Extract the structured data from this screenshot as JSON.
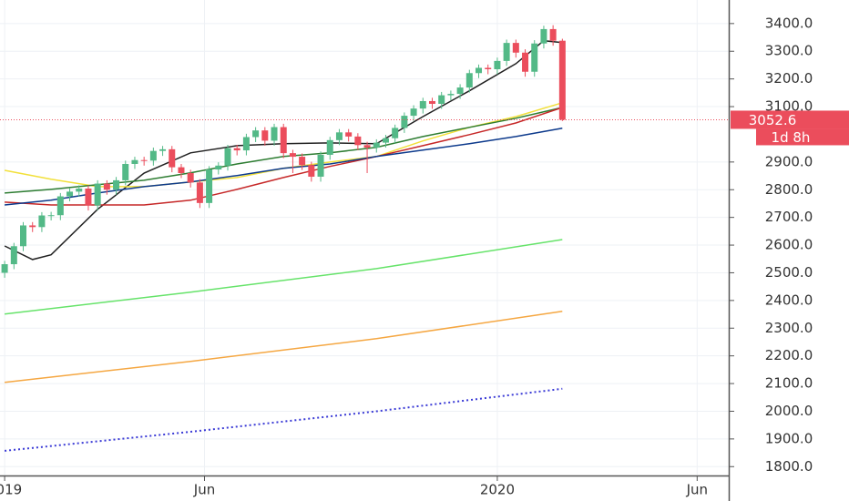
{
  "chart_data": {
    "type": "candlestick",
    "x": [
      0,
      1,
      2,
      3,
      4,
      5,
      6,
      7,
      8,
      9,
      10,
      11,
      12,
      13,
      14,
      15,
      16,
      17,
      18,
      19,
      20,
      21,
      22,
      23,
      24,
      25,
      26,
      27,
      28,
      29,
      30,
      31,
      32,
      33,
      34,
      35,
      36,
      37,
      38,
      39,
      40,
      41,
      42,
      43,
      44,
      45,
      46,
      47,
      48,
      49,
      50,
      51,
      52,
      53,
      54,
      55,
      56,
      57,
      58,
      59,
      60
    ],
    "open": [
      2500,
      2531,
      2596,
      2671,
      2665,
      2707,
      2708,
      2776,
      2793,
      2804,
      2743,
      2822,
      2800,
      2834,
      2893,
      2907,
      2905,
      2940,
      2946,
      2881,
      2860,
      2826,
      2752,
      2873,
      2887,
      2950,
      2942,
      2990,
      3014,
      2977,
      3026,
      2932,
      2919,
      2889,
      2847,
      2926,
      2979,
      3007,
      2992,
      2961,
      2952,
      2970,
      2986,
      3023,
      3067,
      3093,
      3120,
      3110,
      3141,
      3146,
      3169,
      3221,
      3240,
      3235,
      3265,
      3330,
      3295,
      3226,
      3328,
      3380,
      3338
    ],
    "high": [
      2543,
      2608,
      2683,
      2683,
      2719,
      2720,
      2788,
      2805,
      2816,
      2816,
      2834,
      2834,
      2846,
      2905,
      2919,
      2919,
      2952,
      2958,
      2958,
      2893,
      2872,
      2838,
      2885,
      2899,
      2962,
      2962,
      3002,
      3026,
      3026,
      3038,
      3038,
      2944,
      2931,
      2901,
      2938,
      2991,
      3019,
      3019,
      3004,
      2973,
      2982,
      2998,
      3035,
      3079,
      3105,
      3132,
      3132,
      3153,
      3158,
      3181,
      3233,
      3252,
      3252,
      3277,
      3342,
      3342,
      3307,
      3340,
      3392,
      3394,
      3345
    ],
    "low": [
      2482,
      2513,
      2578,
      2647,
      2647,
      2689,
      2690,
      2758,
      2775,
      2725,
      2725,
      2782,
      2782,
      2816,
      2875,
      2887,
      2887,
      2922,
      2863,
      2842,
      2808,
      2734,
      2734,
      2855,
      2869,
      2924,
      2924,
      2972,
      2959,
      2959,
      2914,
      2860,
      2871,
      2829,
      2829,
      2908,
      2961,
      2974,
      2943,
      2860,
      2934,
      2952,
      2968,
      3005,
      3049,
      3075,
      3092,
      3092,
      3123,
      3128,
      3151,
      3203,
      3217,
      3217,
      3247,
      3277,
      3208,
      3208,
      3310,
      3320,
      3048
    ],
    "close": [
      2531,
      2596,
      2671,
      2665,
      2707,
      2708,
      2776,
      2793,
      2804,
      2743,
      2822,
      2800,
      2834,
      2893,
      2907,
      2905,
      2940,
      2946,
      2881,
      2860,
      2826,
      2752,
      2873,
      2887,
      2950,
      2942,
      2990,
      3014,
      2977,
      3026,
      2932,
      2919,
      2889,
      2847,
      2926,
      2979,
      3007,
      2992,
      2961,
      2952,
      2970,
      2986,
      3023,
      3067,
      3093,
      3120,
      3110,
      3141,
      3146,
      3169,
      3221,
      3240,
      3235,
      3265,
      3330,
      3295,
      3226,
      3328,
      3380,
      3338,
      3052.6
    ],
    "up_color": "#53b987",
    "down_color": "#eb4d5c",
    "lines": [
      {
        "color": "#222222",
        "x": [
          0,
          3,
          5,
          10,
          15,
          20,
          25,
          30,
          35,
          40,
          45,
          50,
          55,
          58,
          60
        ],
        "values": [
          2597,
          2548,
          2565,
          2729,
          2860,
          2933,
          2959,
          2966,
          2969,
          2966,
          3064,
          3157,
          3255,
          3338,
          3331
        ]
      },
      {
        "color": "#f2e03a",
        "x": [
          0,
          5,
          10,
          15,
          20,
          25,
          30,
          35,
          40,
          45,
          50,
          55,
          60
        ],
        "values": [
          2870,
          2838,
          2811,
          2811,
          2828,
          2844,
          2877,
          2900,
          2920,
          2976,
          3025,
          3064,
          3114
        ]
      },
      {
        "color": "#2e7d32",
        "x": [
          0,
          5,
          10,
          15,
          20,
          25,
          30,
          35,
          40,
          45,
          50,
          55,
          60
        ],
        "values": [
          2788,
          2801,
          2818,
          2834,
          2861,
          2893,
          2920,
          2933,
          2953,
          2992,
          3025,
          3058,
          3097
        ]
      },
      {
        "color": "#c62828",
        "x": [
          0,
          5,
          10,
          15,
          20,
          25,
          30,
          35,
          40,
          45,
          50,
          55,
          60
        ],
        "values": [
          2755,
          2745,
          2745,
          2745,
          2762,
          2801,
          2844,
          2884,
          2920,
          2959,
          2999,
          3041,
          3097
        ]
      },
      {
        "color": "#0d3a8c",
        "x": [
          0,
          5,
          10,
          15,
          20,
          25,
          30,
          35,
          40,
          45,
          50,
          55,
          60
        ],
        "values": [
          2745,
          2762,
          2788,
          2811,
          2828,
          2851,
          2877,
          2893,
          2920,
          2943,
          2966,
          2992,
          3022
        ]
      },
      {
        "color": "#66e36a",
        "x": [
          0,
          20,
          40,
          60
        ],
        "values": [
          2351,
          2430,
          2515,
          2620
        ]
      },
      {
        "color": "#f5a742",
        "x": [
          0,
          20,
          40,
          60
        ],
        "values": [
          2104,
          2180,
          2262,
          2361
        ]
      },
      {
        "color": "#3b3bd6",
        "x": [
          0,
          20,
          40,
          60
        ],
        "values": [
          1857,
          1926,
          2000,
          2081
        ],
        "dotted": true
      }
    ],
    "xlim": [
      -0.5,
      77.9
    ],
    "xticks": [
      {
        "value": 0,
        "label": "2019"
      },
      {
        "value": 21.5,
        "label": "Jun"
      },
      {
        "value": 53,
        "label": "2020"
      },
      {
        "value": 74.5,
        "label": "Jun"
      }
    ],
    "ylim": [
      1768,
      3485
    ],
    "yticks": [
      {
        "value": 1800,
        "label": "1800.0"
      },
      {
        "value": 1900,
        "label": "1900.0"
      },
      {
        "value": 2000,
        "label": "2000.0"
      },
      {
        "value": 2100,
        "label": "2100.0"
      },
      {
        "value": 2200,
        "label": "2200.0"
      },
      {
        "value": 2300,
        "label": "2300.0"
      },
      {
        "value": 2400,
        "label": "2400.0"
      },
      {
        "value": 2500,
        "label": "2500.0"
      },
      {
        "value": 2600,
        "label": "2600.0"
      },
      {
        "value": 2700,
        "label": "2700.0"
      },
      {
        "value": 2800,
        "label": "2800.0"
      },
      {
        "value": 2900,
        "label": "2900.0"
      },
      {
        "value": 3100,
        "label": "3100.0"
      },
      {
        "value": 3200,
        "label": "3200.0"
      },
      {
        "value": 3300,
        "label": "3300.0"
      },
      {
        "value": 3400,
        "label": "3400.0"
      }
    ],
    "grid": true,
    "countdown": "1d 8h"
  }
}
